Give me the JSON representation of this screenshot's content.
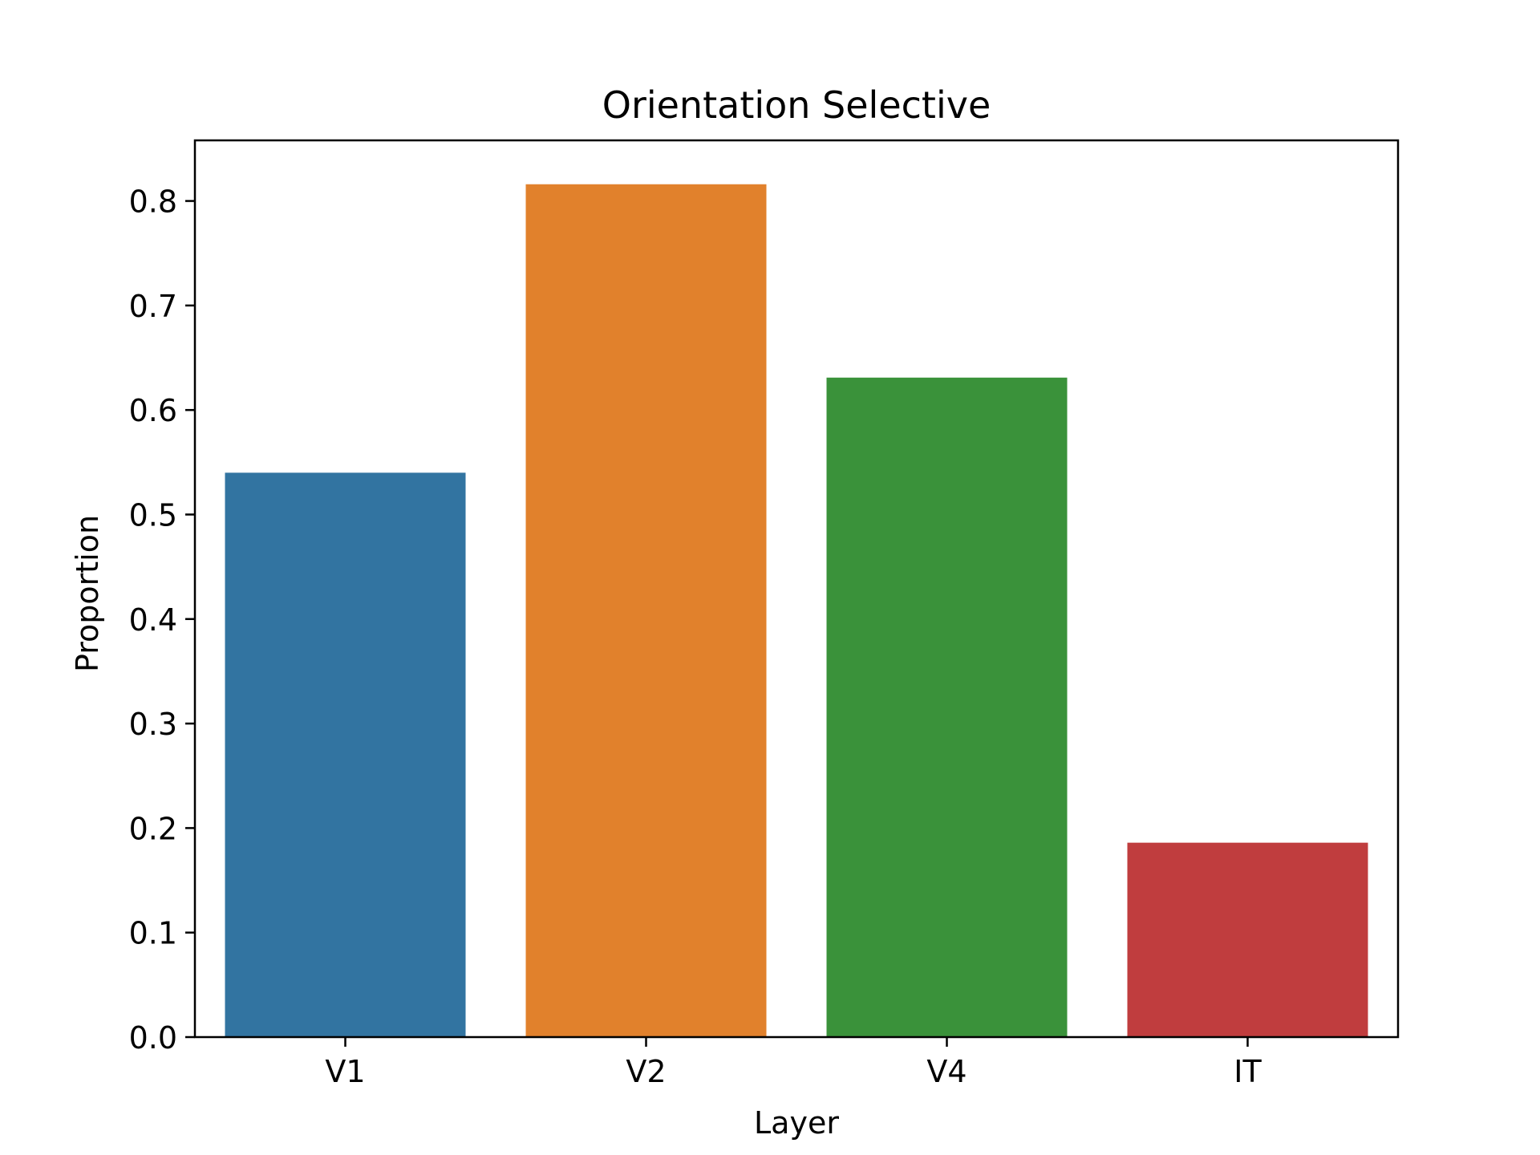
{
  "chart_data": {
    "type": "bar",
    "title": "Orientation Selective",
    "xlabel": "Layer",
    "ylabel": "Proportion",
    "categories": [
      "V1",
      "V2",
      "V4",
      "IT"
    ],
    "values": [
      0.54,
      0.816,
      0.631,
      0.186
    ],
    "colors": [
      "#3274a1",
      "#e1812c",
      "#3a923a",
      "#c03d3e"
    ],
    "ylim": [
      0,
      0.858
    ],
    "yticks": [
      0.0,
      0.1,
      0.2,
      0.3,
      0.4,
      0.5,
      0.6,
      0.7,
      0.8
    ],
    "ytick_labels": [
      "0.0",
      "0.1",
      "0.2",
      "0.3",
      "0.4",
      "0.5",
      "0.6",
      "0.7",
      "0.8"
    ],
    "grid": false,
    "legend": "none"
  }
}
